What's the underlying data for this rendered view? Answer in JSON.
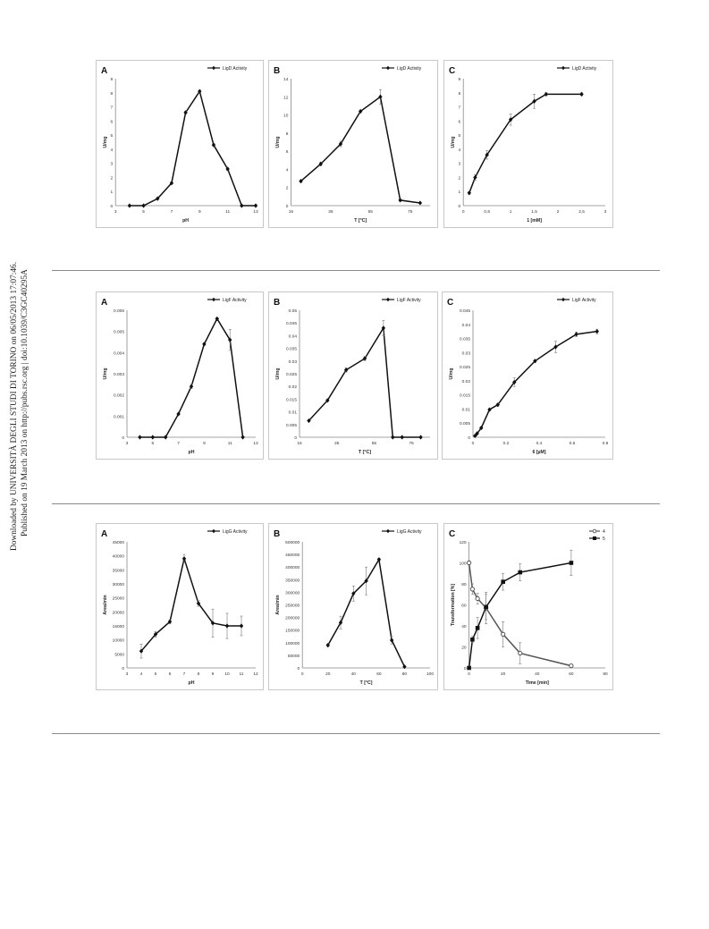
{
  "side_note": {
    "line1": "Downloaded by UNIVERSITÀ DEGLI STUDI DI TORINO on 06/05/2013 17:07:46.",
    "line2": "Published on 19 March 2013 on http://pubs.rsc.org | doi:10.1039/C3GC40295A"
  },
  "chart_data": [
    {
      "id": "row1-A",
      "type": "line",
      "panel_letter": "A",
      "xlabel": "pH",
      "ylabel": "U/mg",
      "xlim": [
        3,
        13
      ],
      "ylim": [
        0,
        9
      ],
      "xticks": [
        3,
        5,
        7,
        9,
        11,
        13
      ],
      "yticks": [
        0,
        1,
        2,
        3,
        4,
        5,
        6,
        7,
        8,
        9
      ],
      "series": [
        {
          "name": "LigD Activity",
          "marker": "diamond",
          "x": [
            4,
            5,
            6,
            7,
            8,
            9,
            10,
            11,
            12,
            13
          ],
          "y": [
            0,
            0,
            0.5,
            1.6,
            6.6,
            8.1,
            4.3,
            2.6,
            0,
            0
          ],
          "err": [
            0,
            0,
            0.05,
            0.05,
            0.1,
            0.1,
            0.1,
            0.1,
            0,
            0
          ]
        }
      ]
    },
    {
      "id": "row1-B",
      "type": "line",
      "panel_letter": "B",
      "xlabel": "T [°C]",
      "ylabel": "U/mg",
      "xlim": [
        15,
        85
      ],
      "ylim": [
        0,
        14
      ],
      "xticks": [
        15,
        35,
        55,
        75
      ],
      "yticks": [
        0,
        2,
        4,
        6,
        8,
        10,
        12,
        14
      ],
      "series": [
        {
          "name": "LigD Activity",
          "marker": "diamond",
          "x": [
            20,
            30,
            40,
            50,
            60,
            70,
            80
          ],
          "y": [
            2.7,
            4.6,
            6.8,
            10.4,
            12,
            0.6,
            0.3
          ],
          "err": [
            0.1,
            0.2,
            0.3,
            0.1,
            0.8,
            0.1,
            0.05
          ]
        }
      ]
    },
    {
      "id": "row1-C",
      "type": "line",
      "panel_letter": "C",
      "xlabel": "1 [mM]",
      "ylabel": "U/mg",
      "xlim": [
        0,
        3
      ],
      "ylim": [
        0,
        9
      ],
      "xticks": [
        0,
        0.5,
        1,
        1.5,
        2,
        2.5,
        3
      ],
      "xticklabels": [
        "0",
        "0,5",
        "1",
        "1,5",
        "2",
        "2,5",
        "3"
      ],
      "yticks": [
        0,
        1,
        2,
        3,
        4,
        5,
        6,
        7,
        8,
        9
      ],
      "series": [
        {
          "name": "LigD Activity",
          "marker": "diamond",
          "x": [
            0.125,
            0.25,
            0.5,
            1,
            1.5,
            1.75,
            2.5
          ],
          "y": [
            0.9,
            2,
            3.6,
            6.1,
            7.4,
            7.9,
            7.9
          ],
          "err": [
            0.1,
            0.2,
            0.3,
            0.4,
            0.5,
            0.1,
            0.1
          ]
        }
      ]
    },
    {
      "id": "row2-A",
      "type": "line",
      "panel_letter": "A",
      "xlabel": "pH",
      "ylabel": "U/mg",
      "xlim": [
        3,
        13
      ],
      "ylim": [
        0,
        0.006
      ],
      "xticks": [
        3,
        5,
        7,
        9,
        11,
        13
      ],
      "yticks": [
        0,
        0.001,
        0.002,
        0.003,
        0.004,
        0.005,
        0.006
      ],
      "series": [
        {
          "name": "LigF Activity",
          "marker": "diamond",
          "x": [
            4,
            5,
            6,
            7,
            8,
            9,
            10,
            11,
            12
          ],
          "y": [
            0,
            0,
            0,
            0.0011,
            0.0024,
            0.0044,
            0.0056,
            0.0046,
            0
          ],
          "err": [
            0,
            0,
            0,
            3e-05,
            0.0001,
            5e-05,
            5e-05,
            0.0005,
            0
          ]
        }
      ]
    },
    {
      "id": "row2-B",
      "type": "line",
      "panel_letter": "B",
      "xlabel": "T [°C]",
      "ylabel": "U/mg",
      "xlim": [
        15,
        85
      ],
      "ylim": [
        0,
        0.05
      ],
      "xticks": [
        15,
        35,
        55,
        75
      ],
      "yticks": [
        0,
        0.005,
        0.01,
        0.015,
        0.02,
        0.025,
        0.03,
        0.035,
        0.04,
        0.045,
        0.05
      ],
      "series": [
        {
          "name": "LigF Activity",
          "marker": "diamond",
          "x": [
            20,
            30,
            40,
            50,
            60,
            65,
            70,
            80
          ],
          "y": [
            0.0065,
            0.0145,
            0.0265,
            0.031,
            0.043,
            0,
            0,
            0
          ],
          "err": [
            0.0002,
            0.0003,
            0.0008,
            0.0008,
            0.003,
            0,
            0,
            0
          ]
        }
      ]
    },
    {
      "id": "row2-C",
      "type": "line",
      "panel_letter": "C",
      "xlabel": "6 [µM]",
      "ylabel": "U/mg",
      "xlim": [
        0,
        0.8
      ],
      "ylim": [
        0,
        0.045
      ],
      "xticks": [
        0,
        0.2,
        0.4,
        0.6,
        0.8
      ],
      "yticks": [
        0,
        0.005,
        0.01,
        0.015,
        0.02,
        0.025,
        0.03,
        0.035,
        0.04,
        0.045
      ],
      "series": [
        {
          "name": "LigF Activity",
          "marker": "diamond",
          "x": [
            0.0125,
            0.025,
            0.05,
            0.1,
            0.15,
            0.25,
            0.375,
            0.5,
            0.625,
            0.75
          ],
          "y": [
            0.0005,
            0.0013,
            0.0033,
            0.0098,
            0.0115,
            0.0195,
            0.027,
            0.032,
            0.0365,
            0.0375
          ],
          "err": [
            0.0002,
            0.0002,
            0.0003,
            0.0004,
            0.0005,
            0.0015,
            0.0005,
            0.002,
            0.0008,
            0.0008
          ]
        }
      ]
    },
    {
      "id": "row3-A",
      "type": "line",
      "panel_letter": "A",
      "xlabel": "pH",
      "ylabel": "Area/min",
      "xlim": [
        3,
        12
      ],
      "ylim": [
        0,
        45000
      ],
      "xticks": [
        3,
        4,
        5,
        6,
        7,
        8,
        9,
        10,
        11,
        12
      ],
      "yticks": [
        0,
        5000,
        10000,
        15000,
        20000,
        25000,
        30000,
        35000,
        40000,
        45000
      ],
      "series": [
        {
          "name": "LigG Activity",
          "marker": "diamond",
          "x": [
            4,
            5,
            6,
            7,
            8,
            9,
            10,
            11
          ],
          "y": [
            6000,
            12000,
            16500,
            39000,
            23000,
            16000,
            15000,
            15000
          ],
          "err": [
            2500,
            1000,
            700,
            1500,
            1000,
            5000,
            4500,
            3500
          ]
        }
      ]
    },
    {
      "id": "row3-B",
      "type": "line",
      "panel_letter": "B",
      "xlabel": "T [°C]",
      "ylabel": "Area/min",
      "xlim": [
        0,
        100
      ],
      "ylim": [
        0,
        500000
      ],
      "xticks": [
        0,
        20,
        40,
        60,
        80,
        100
      ],
      "yticks": [
        0,
        50000,
        100000,
        150000,
        200000,
        250000,
        300000,
        350000,
        400000,
        450000,
        500000
      ],
      "series": [
        {
          "name": "LigG Activity",
          "marker": "diamond",
          "x": [
            20,
            30,
            40,
            50,
            60,
            70,
            80
          ],
          "y": [
            90000,
            180000,
            295000,
            345000,
            430000,
            110000,
            5000
          ],
          "err": [
            5000,
            25000,
            30000,
            55000,
            5000,
            15000,
            2000
          ]
        }
      ]
    },
    {
      "id": "row3-C",
      "type": "line",
      "panel_letter": "C",
      "xlabel": "Time [min]",
      "ylabel": "Transformation [%]",
      "xlim": [
        0,
        80
      ],
      "ylim": [
        0,
        120
      ],
      "xticks": [
        0,
        20,
        40,
        60,
        80
      ],
      "yticks": [
        0,
        20,
        40,
        60,
        80,
        100,
        120
      ],
      "series": [
        {
          "name": "4",
          "marker": "circle",
          "x": [
            0,
            2,
            5,
            10,
            20,
            30,
            60
          ],
          "y": [
            100,
            75,
            66,
            57,
            32,
            14,
            2
          ],
          "err": [
            2,
            5,
            5,
            15,
            12,
            10,
            1
          ]
        },
        {
          "name": "5",
          "marker": "square",
          "x": [
            0,
            2,
            5,
            10,
            20,
            30,
            60
          ],
          "y": [
            0,
            27,
            38,
            58,
            82,
            91,
            100
          ],
          "err": [
            0,
            3,
            10,
            12,
            8,
            8,
            12
          ]
        }
      ]
    }
  ]
}
